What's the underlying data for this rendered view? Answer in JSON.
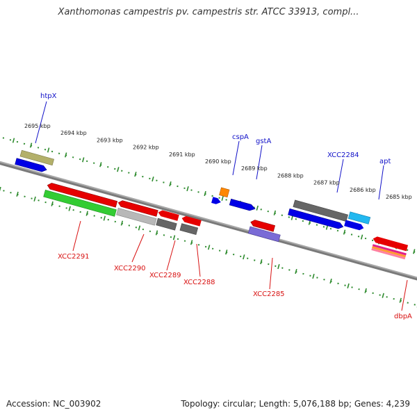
{
  "title": "Xanthomonas campestris pv. campestris str. ATCC 33913, compl...",
  "footer": {
    "accession": "Accession: NC_003902",
    "summary": "Topology: circular; Length: 5,076,188 bp; Genes: 4,239"
  },
  "ruler": {
    "labels": [
      "2695 kbp",
      "2694 kbp",
      "2693 kbp",
      "2692 kbp",
      "2691 kbp",
      "2690 kbp",
      "2689 kbp",
      "2688 kbp",
      "2687 kbp",
      "2686 kbp",
      "2685 kbp"
    ]
  },
  "gene_labels": {
    "top": [
      "htpX",
      "cspA",
      "gstA",
      "XCC2284",
      "apt"
    ],
    "bottom": [
      "XCC2291",
      "XCC2290",
      "XCC2289",
      "XCC2288",
      "XCC2285",
      "dbpA"
    ]
  },
  "colors": {
    "top_label": "#1010c8",
    "bottom_label": "#d81010",
    "red": "#e60000",
    "green": "#33cc33",
    "blue": "#0000e6",
    "olive": "#b3b06a",
    "orange": "#ff8800",
    "cyan": "#22b8f0",
    "dark_gray": "#666666",
    "light_gray": "#b8b8b8",
    "purple": "#7a6bd6",
    "pink": "#ff80a0",
    "ruler": "#2e8b2e",
    "backbone": "#7a7a7a"
  }
}
